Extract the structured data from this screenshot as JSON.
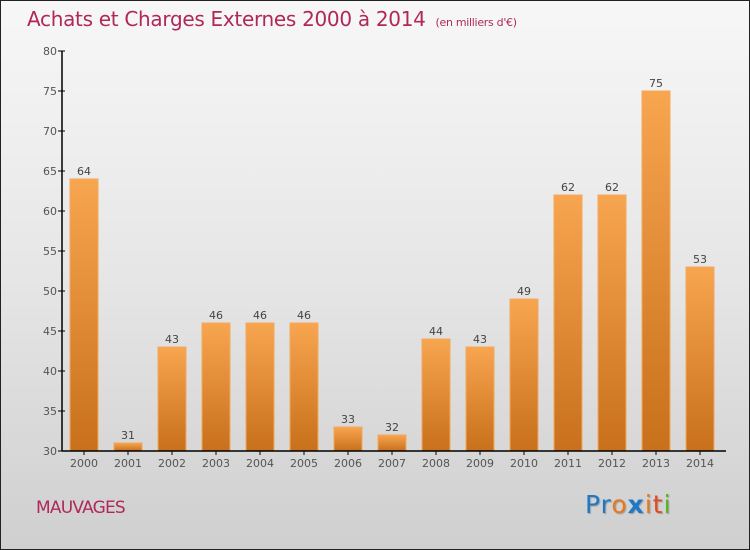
{
  "header": {
    "title": "Achats et Charges Externes 2000 à 2014",
    "unit": "(en milliers d'€)"
  },
  "footer": {
    "commune": "MAUVAGES",
    "logo": [
      {
        "ch": "P",
        "color": "#1e78c8"
      },
      {
        "ch": "r",
        "color": "#1e78c8"
      },
      {
        "ch": "o",
        "color": "#e8781e"
      },
      {
        "ch": "x",
        "color": "#1e78c8"
      },
      {
        "ch": "i",
        "color": "#e8781e"
      },
      {
        "ch": "t",
        "color": "#e84820"
      },
      {
        "ch": "i",
        "color": "#5ab428"
      }
    ]
  },
  "colors": {
    "bar_top": "#f8a550",
    "bar_bottom": "#c8701c",
    "title": "#b0285a"
  },
  "chart_data": {
    "type": "bar",
    "title": "Achats et Charges Externes 2000 à 2014 (en milliers d'€)",
    "xlabel": "",
    "ylabel": "",
    "categories": [
      "2000",
      "2001",
      "2002",
      "2003",
      "2004",
      "2005",
      "2006",
      "2007",
      "2008",
      "2009",
      "2010",
      "2011",
      "2012",
      "2013",
      "2014"
    ],
    "values": [
      64,
      31,
      43,
      46,
      46,
      46,
      33,
      32,
      44,
      43,
      49,
      62,
      62,
      75,
      53
    ],
    "ylim": [
      30,
      80
    ],
    "yticks": [
      30,
      35,
      40,
      45,
      50,
      55,
      60,
      65,
      70,
      75,
      80
    ],
    "grid": false,
    "legend": "none"
  }
}
